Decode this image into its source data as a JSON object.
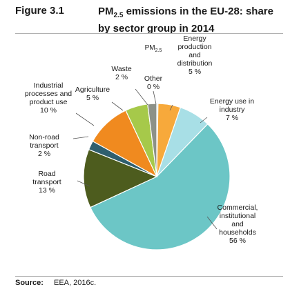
{
  "figure": {
    "number": "Figure 3.1",
    "title_main": "PM",
    "title_sub": "2.5",
    "title_rest": " emissions in the EU-28: share by sector group in 2014"
  },
  "chart_data": {
    "type": "pie",
    "label_main": "PM",
    "label_sub": "2.5",
    "slices": [
      {
        "name": "Other",
        "value": 0,
        "label_lines": [
          "Other",
          "0 %"
        ],
        "color": "#a8c8e8"
      },
      {
        "name": "Energy production and distribution",
        "value": 5,
        "label_lines": [
          "Energy",
          "production",
          "and",
          "distribution",
          "5 %"
        ],
        "color": "#f7a93b"
      },
      {
        "name": "Energy use in industry",
        "value": 7,
        "label_lines": [
          "Energy use in",
          "industry",
          "7 %"
        ],
        "color": "#a8dfe6"
      },
      {
        "name": "Commercial, institutional and households",
        "value": 56,
        "label_lines": [
          "Commercial,",
          "institutional",
          "and",
          "households",
          "56 %"
        ],
        "color": "#6cc6c6"
      },
      {
        "name": "Road transport",
        "value": 13,
        "label_lines": [
          "Road",
          "transport",
          "13 %"
        ],
        "color": "#4d5c1e"
      },
      {
        "name": "Non-road transport",
        "value": 2,
        "label_lines": [
          "Non-road",
          "transport",
          "2 %"
        ],
        "color": "#2f5f6e"
      },
      {
        "name": "Industrial processes and product use",
        "value": 10,
        "label_lines": [
          "Industrial",
          "processes and",
          "product use",
          "10 %"
        ],
        "color": "#f08a1f"
      },
      {
        "name": "Agriculture",
        "value": 5,
        "label_lines": [
          "Agriculture",
          "5 %"
        ],
        "color": "#a6c94a"
      },
      {
        "name": "Waste",
        "value": 2,
        "label_lines": [
          "Waste",
          "2 %"
        ],
        "color": "#8d9188"
      }
    ]
  },
  "source": {
    "label": "Source:",
    "text": "EEA, 2016c."
  }
}
